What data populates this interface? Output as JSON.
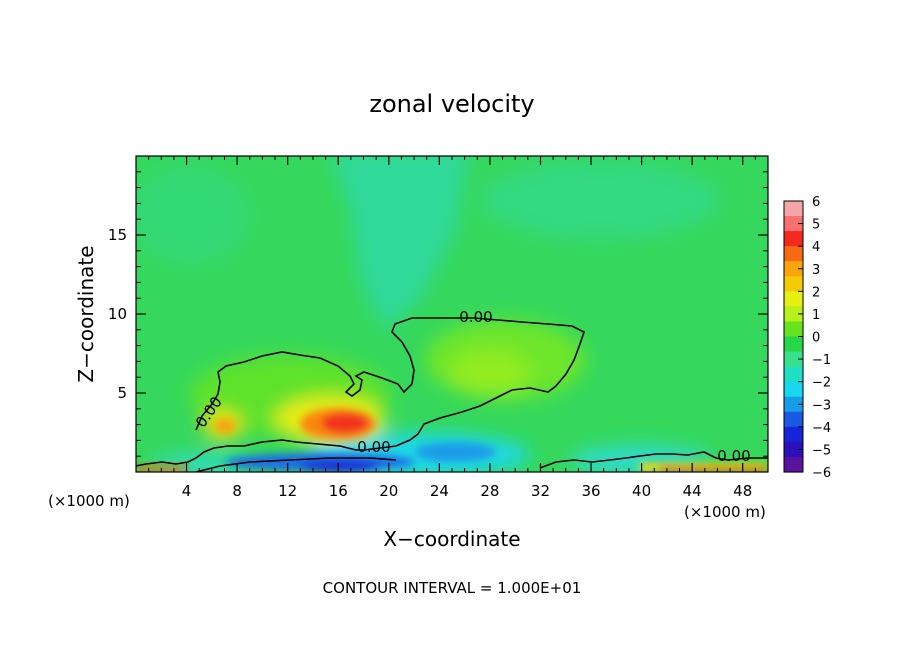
{
  "chart_data": {
    "type": "heatmap",
    "title": "zonal velocity",
    "xlabel": "X−coordinate",
    "ylabel": "Z−coordinate",
    "x_unit_left": "(×1000 m)",
    "x_unit_right": "(×1000 m)",
    "xlim": [
      0,
      50
    ],
    "ylim": [
      0,
      20
    ],
    "x_ticks": [
      4,
      8,
      12,
      16,
      20,
      24,
      28,
      32,
      36,
      40,
      44,
      48
    ],
    "y_ticks": [
      5,
      10,
      15
    ],
    "colorbar": {
      "ticks": [
        "6",
        "5",
        "4",
        "3",
        "2",
        "1",
        "0",
        "−1",
        "−2",
        "−3",
        "−4",
        "−5",
        "−6"
      ],
      "colors": [
        "#f4a6a6",
        "#f87070",
        "#f52a1f",
        "#f86a12",
        "#f8a50b",
        "#f3cb05",
        "#e6ef12",
        "#b7f01a",
        "#66e31e",
        "#28d64a",
        "#38e08a",
        "#1fe0c2",
        "#18d8ee",
        "#179ce8",
        "#1a59e2",
        "#1724d7",
        "#2d10b8",
        "#5a139c"
      ]
    },
    "contour_labels": [
      "0.00",
      "0.00",
      "0.00",
      "0.00"
    ],
    "contour_interval_text": "CONTOUR INTERVAL = 1.000E+01",
    "features": [
      {
        "name": "positive core near surface",
        "x": 17,
        "z": 3.0,
        "value": 4
      },
      {
        "name": "positive region aloft",
        "x": 28,
        "z": 7.0,
        "value": 1
      },
      {
        "name": "negative jet near surface",
        "x": 17,
        "z": 0.8,
        "value": -5
      },
      {
        "name": "weak negative column aloft",
        "x": 24,
        "z": 16,
        "value": -1.5
      },
      {
        "name": "positive surface flow",
        "x": 46,
        "z": 0.3,
        "value": 4
      }
    ]
  }
}
